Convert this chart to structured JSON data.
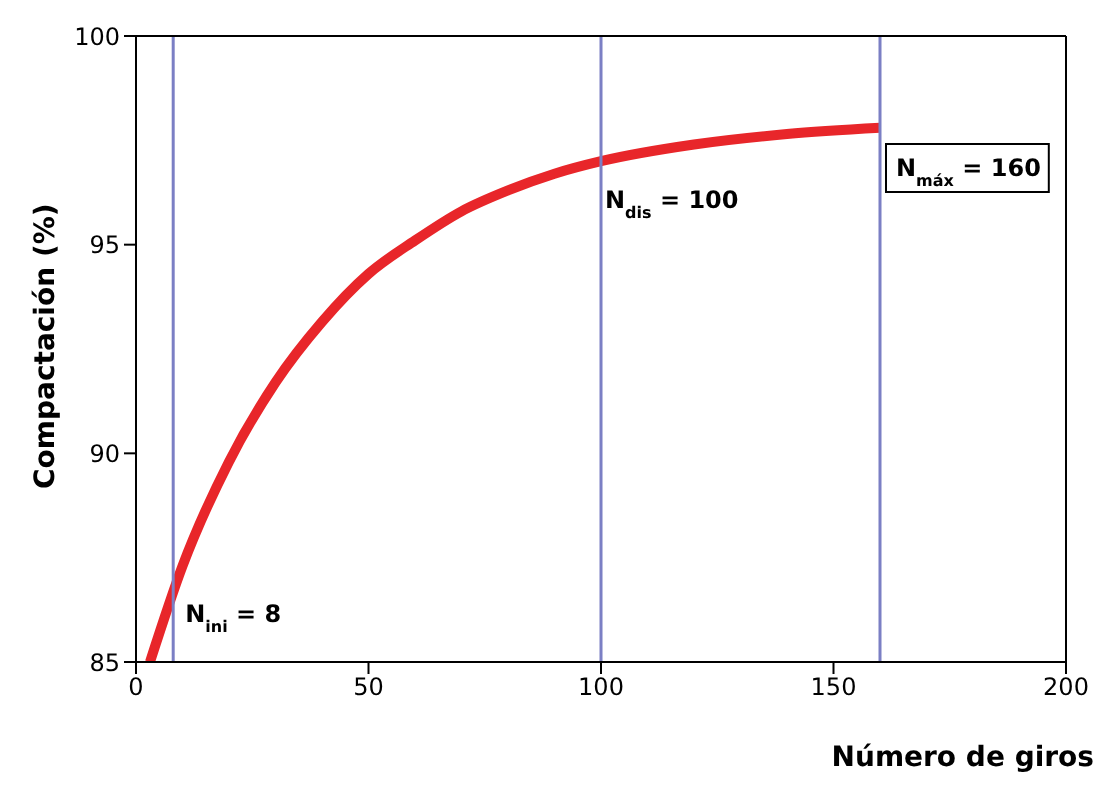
{
  "chart_data": {
    "type": "line",
    "xlabel": "Número de giros",
    "ylabel": "Compactación (%)",
    "x": [
      3,
      10,
      20,
      30,
      40,
      50,
      60,
      70,
      80,
      90,
      100,
      120,
      140,
      160
    ],
    "series": [
      {
        "color": "#e8262a",
        "values": [
          85,
          87.3,
          89.8,
          91.7,
          93.15,
          94.3,
          95.1,
          95.8,
          96.3,
          96.7,
          97,
          97.4,
          97.65,
          97.8
        ]
      }
    ],
    "xlim": [
      0,
      200
    ],
    "xticks": [
      0,
      50,
      100,
      150,
      200
    ],
    "ylim": [
      85,
      100
    ],
    "yticks": [
      85,
      90,
      95,
      100
    ],
    "grid": false,
    "legend": false,
    "marker": "none",
    "line_style": "solid",
    "ref_lines": [
      {
        "axis": "x",
        "value": 8,
        "label": "N$_{ini}$ = 8",
        "color": "#7b7fc4"
      },
      {
        "axis": "x",
        "value": 100,
        "label": "N$_{dis}$ = 100",
        "color": "#7b7fc4"
      },
      {
        "axis": "x",
        "value": 160,
        "label": "N$_{máx}$ = 160",
        "color": "#7b7fc4"
      }
    ]
  }
}
